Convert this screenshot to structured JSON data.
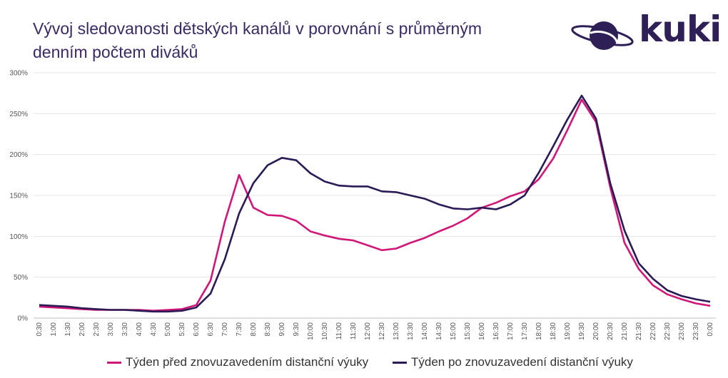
{
  "title": {
    "line1": "Vývoj sledovanosti dětských kanálů v porovnání s průměrným",
    "line2": "denním počtem diváků"
  },
  "logo": {
    "text": "kuki",
    "icon": "planet-icon"
  },
  "colors": {
    "series1": "#d01777",
    "series2": "#2a1a56",
    "grid": "#e4e4e4",
    "title": "#3a2a63"
  },
  "chart_data": {
    "type": "line",
    "title": "Vývoj sledovanosti dětských kanálů v porovnání s průměrným denním počtem diváků",
    "xlabel": "",
    "ylabel": "",
    "ylim": [
      0,
      300
    ],
    "y_ticks": [
      "0%",
      "50%",
      "100%",
      "150%",
      "200%",
      "250%",
      "300%"
    ],
    "grid": true,
    "legend_position": "bottom",
    "x": [
      "0:30",
      "1:00",
      "1:30",
      "2:00",
      "2:30",
      "3:00",
      "3:30",
      "4:00",
      "4:30",
      "5:00",
      "5:30",
      "6:00",
      "6:30",
      "7:00",
      "7:30",
      "8:00",
      "8:30",
      "9:00",
      "9:30",
      "10:00",
      "10:30",
      "11:00",
      "11:30",
      "12:00",
      "12:30",
      "13:00",
      "13:30",
      "14:00",
      "14:30",
      "15:00",
      "15:30",
      "16:00",
      "16:30",
      "17:00",
      "17:30",
      "18:00",
      "18:30",
      "19:00",
      "19:30",
      "20:00",
      "20:30",
      "21:00",
      "21:30",
      "22:00",
      "22:30",
      "23:00",
      "23:30",
      "0:00"
    ],
    "series": [
      {
        "name": "Týden před znovuzavedením distanční výuky",
        "color": "#d01777",
        "values": [
          14,
          13,
          12,
          11,
          10,
          10,
          10,
          10,
          9,
          10,
          11,
          16,
          46,
          118,
          175,
          135,
          126,
          125,
          119,
          106,
          101,
          97,
          95,
          89,
          83,
          85,
          92,
          98,
          106,
          113,
          122,
          135,
          141,
          149,
          155,
          170,
          195,
          230,
          267,
          240,
          160,
          92,
          60,
          40,
          29,
          23,
          18,
          15
        ]
      },
      {
        "name": "Týden po znovuzavedení distanční výuky",
        "color": "#2a1a56",
        "values": [
          16,
          15,
          14,
          12,
          11,
          10,
          10,
          9,
          8,
          8,
          9,
          13,
          30,
          72,
          128,
          165,
          187,
          196,
          193,
          177,
          167,
          162,
          161,
          161,
          155,
          154,
          150,
          146,
          139,
          134,
          133,
          135,
          133,
          139,
          150,
          178,
          210,
          243,
          272,
          244,
          165,
          107,
          67,
          48,
          34,
          27,
          23,
          20
        ]
      }
    ]
  }
}
